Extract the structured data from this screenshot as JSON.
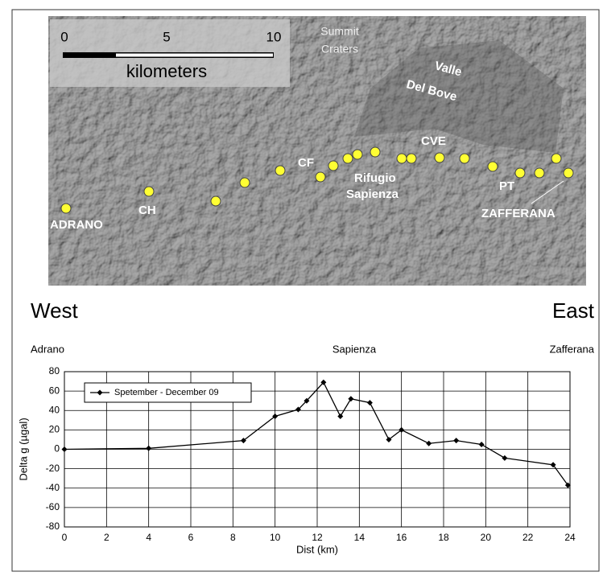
{
  "map": {
    "summit_craters": [
      "Summit",
      "Craters"
    ],
    "valle_del_bove": [
      "Valle",
      "Del Bove"
    ],
    "scale_labels": [
      "0",
      "5",
      "10"
    ],
    "scale_unit": "kilometers",
    "stations": {
      "adrano": "ADRANO",
      "ch": "CH",
      "cf": "CF",
      "rifugio_sapienza": [
        "Rifugio",
        "Sapienza"
      ],
      "cve": "CVE",
      "pt": "PT",
      "zafferana": "ZAFFERANA"
    }
  },
  "profile": {
    "west": "West",
    "east": "East",
    "left": "Adrano",
    "middle": "Sapienza",
    "right": "Zafferana"
  },
  "chart_data": {
    "type": "line",
    "xlabel": "Dist (km)",
    "ylabel": "Delta g (µgal)",
    "x": [
      0,
      4,
      8.5,
      10,
      11.1,
      11.5,
      12.3,
      13.1,
      13.6,
      14.5,
      15.4,
      16,
      17.3,
      18.6,
      19.8,
      20.9,
      23.2,
      23.9
    ],
    "series": [
      {
        "name": "Spetember - December 09",
        "color": "#000000",
        "values": [
          0,
          1,
          9,
          34,
          41,
          50,
          69,
          34,
          52,
          48,
          10,
          20,
          6,
          9,
          5,
          -9,
          -16,
          -37
        ]
      }
    ],
    "xlim": [
      0,
      24
    ],
    "xticks": [
      0,
      2,
      4,
      6,
      8,
      10,
      12,
      14,
      16,
      18,
      20,
      22,
      24
    ],
    "ylim": [
      -80,
      80
    ],
    "yticks": [
      -80,
      -60,
      -40,
      -20,
      0,
      20,
      40,
      60,
      80
    ],
    "grid": true
  }
}
